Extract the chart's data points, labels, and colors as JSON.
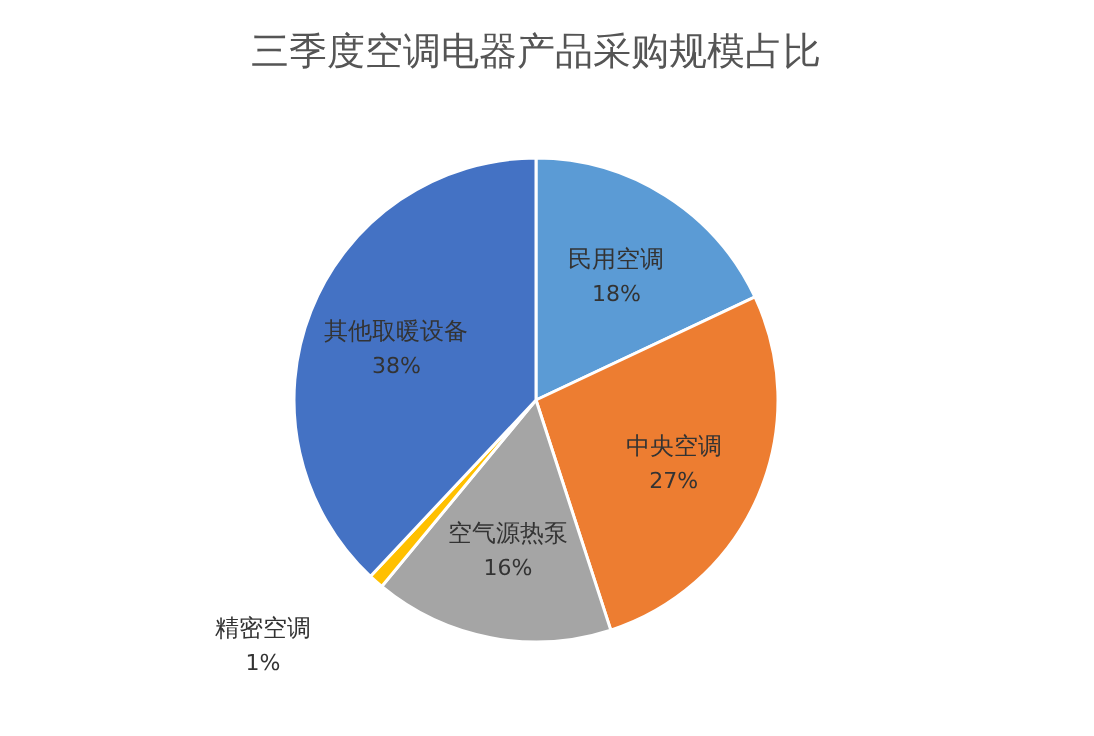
{
  "chart_data": {
    "type": "pie",
    "title": "三季度空调电器产品采购规模占比",
    "categories": [
      "民用空调",
      "中央空调",
      "空气源热泵",
      "精密空调",
      "其他取暖设备"
    ],
    "values": [
      18,
      27,
      16,
      1,
      38
    ],
    "value_labels": [
      "18%",
      "27%",
      "16%",
      "1%",
      "38%"
    ],
    "colors": [
      "#5b9bd5",
      "#ed7d31",
      "#a5a5a5",
      "#ffc000",
      "#4472c4"
    ]
  }
}
